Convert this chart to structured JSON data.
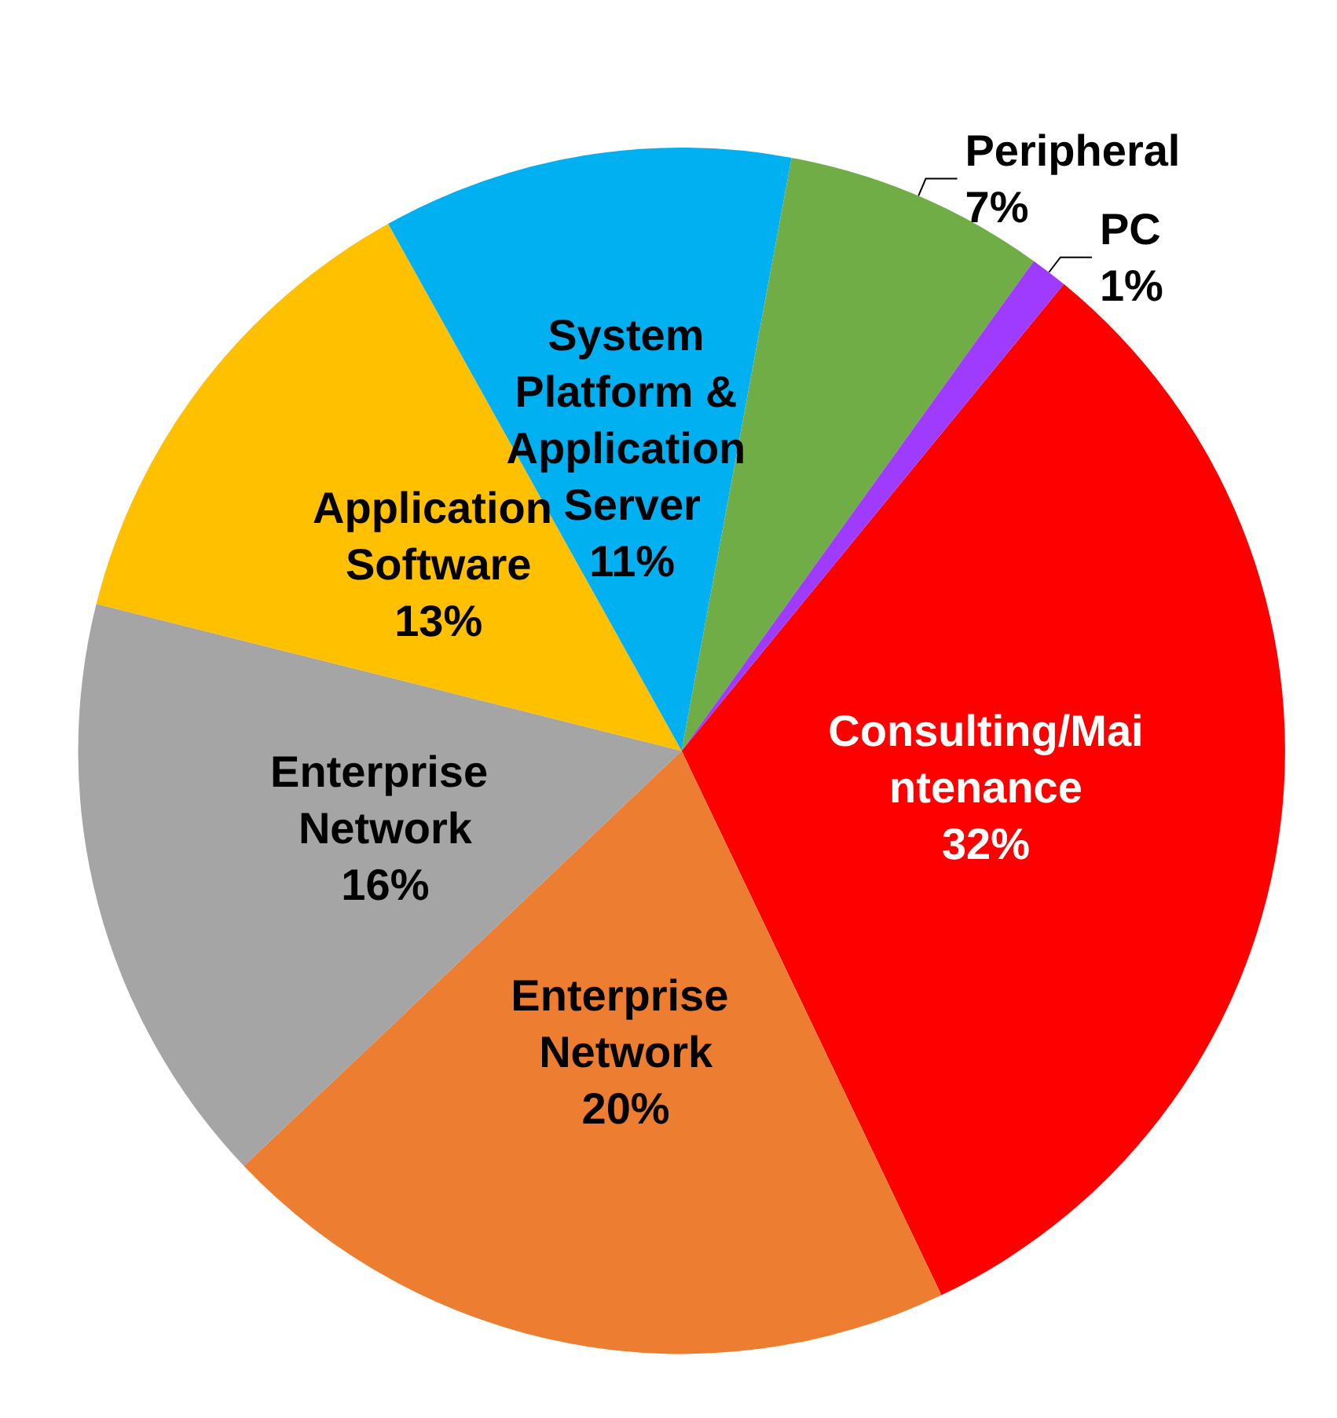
{
  "chart_data": {
    "type": "pie",
    "categories": [
      "Consulting/Maintenance",
      "Enterprise Network",
      "Enterprise Network",
      "Application Software",
      "System Platform & Application Server",
      "Peripheral",
      "PC"
    ],
    "values": [
      32,
      20,
      16,
      13,
      11,
      7,
      1
    ],
    "value_labels": [
      "32%",
      "20%",
      "16%",
      "13%",
      "11%",
      "7%",
      "1%"
    ],
    "colors": [
      "#ff0000",
      "#ed7d31",
      "#a5a5a5",
      "#ffc000",
      "#00b0f0",
      "#70ad47",
      "#9f3bff"
    ]
  }
}
